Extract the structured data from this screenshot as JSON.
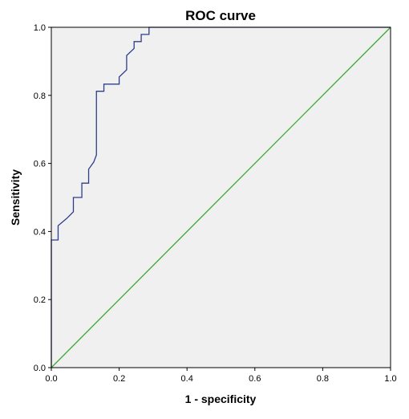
{
  "chart_data": {
    "type": "line",
    "title": "ROC curve",
    "xlabel": "1 - specificity",
    "ylabel": "Sensitivity",
    "xlim": [
      0,
      1
    ],
    "ylim": [
      0,
      1
    ],
    "x_ticks": [
      "0.0",
      "0.2",
      "0.4",
      "0.6",
      "0.8",
      "1.0"
    ],
    "y_ticks": [
      "0.0",
      "0.2",
      "0.4",
      "0.6",
      "0.8",
      "1.0"
    ],
    "grid": false,
    "background_color": "#f0f0f0",
    "series": [
      {
        "color": "#2e3e8c",
        "step": true,
        "x": [
          0,
          0,
          0.02,
          0.02,
          0.045,
          0.065,
          0.065,
          0.09,
          0.09,
          0.11,
          0.11,
          0.125,
          0.133,
          0.133,
          0.155,
          0.155,
          0.2,
          0.2,
          0.222,
          0.222,
          0.244,
          0.244,
          0.265,
          0.265,
          0.288,
          0.288,
          1.0
        ],
        "y": [
          0,
          0.375,
          0.375,
          0.417,
          0.438,
          0.458,
          0.5,
          0.5,
          0.542,
          0.542,
          0.583,
          0.604,
          0.625,
          0.812,
          0.812,
          0.833,
          0.833,
          0.854,
          0.875,
          0.917,
          0.938,
          0.958,
          0.958,
          0.979,
          0.979,
          1.0,
          1.0
        ]
      },
      {
        "color": "#3aaa35",
        "x": [
          0,
          1
        ],
        "y": [
          0,
          1
        ]
      }
    ]
  }
}
